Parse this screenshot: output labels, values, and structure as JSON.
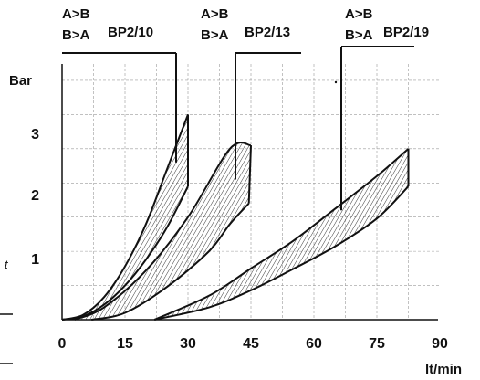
{
  "chart_data": {
    "type": "area",
    "xlabel": "lt/min",
    "ylabel": "Bar",
    "xlim": [
      0,
      90
    ],
    "ylim": [
      0,
      3.7
    ],
    "x_ticks": [
      "0",
      "15",
      "30",
      "45",
      "60",
      "75",
      "90"
    ],
    "y_ticks": [
      "1",
      "2",
      "3"
    ],
    "grid": true,
    "direction_labels": [
      "A>B",
      "B>A"
    ],
    "series": [
      {
        "name": "BP2/10",
        "upper": [
          [
            0,
            0
          ],
          [
            5,
            0.07
          ],
          [
            10,
            0.33
          ],
          [
            15,
            0.78
          ],
          [
            20,
            1.4
          ],
          [
            25,
            2.2
          ],
          [
            30,
            3.0
          ]
        ],
        "lower": [
          [
            0,
            0
          ],
          [
            5,
            0.05
          ],
          [
            10,
            0.22
          ],
          [
            15,
            0.5
          ],
          [
            20,
            0.88
          ],
          [
            25,
            1.35
          ],
          [
            30,
            1.95
          ]
        ]
      },
      {
        "name": "BP2/13",
        "upper": [
          [
            3,
            0
          ],
          [
            10,
            0.18
          ],
          [
            20,
            0.72
          ],
          [
            30,
            1.5
          ],
          [
            40,
            2.5
          ],
          [
            45,
            2.55
          ]
        ],
        "lower": [
          [
            7,
            0
          ],
          [
            15,
            0.1
          ],
          [
            25,
            0.48
          ],
          [
            35,
            1.0
          ],
          [
            40,
            1.4
          ],
          [
            44.5,
            1.7
          ]
        ]
      },
      {
        "name": "BP2/19",
        "upper": [
          [
            22,
            0
          ],
          [
            35,
            0.35
          ],
          [
            45,
            0.75
          ],
          [
            55,
            1.15
          ],
          [
            65,
            1.62
          ],
          [
            75,
            2.1
          ],
          [
            82.5,
            2.5
          ]
        ],
        "lower": [
          [
            22,
            0
          ],
          [
            35,
            0.18
          ],
          [
            45,
            0.43
          ],
          [
            55,
            0.74
          ],
          [
            65,
            1.07
          ],
          [
            75,
            1.48
          ],
          [
            82.5,
            1.95
          ]
        ]
      }
    ]
  },
  "stray_marks": [
    "t"
  ]
}
